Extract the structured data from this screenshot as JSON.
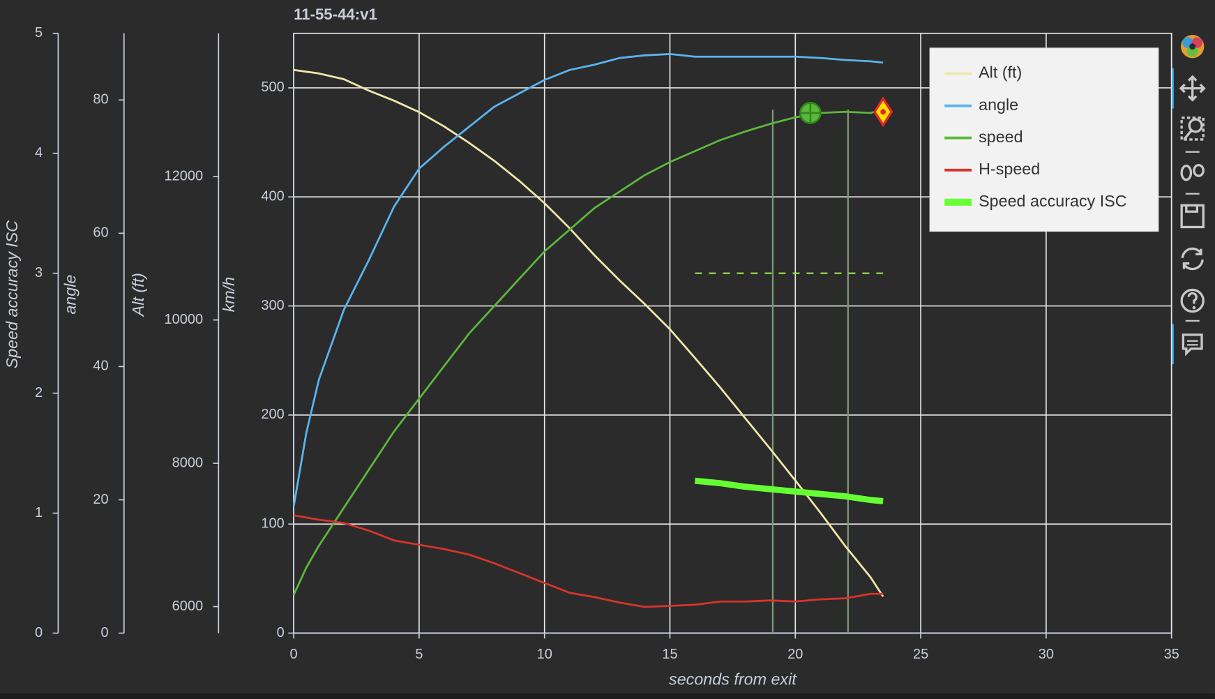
{
  "chart_data": {
    "type": "line",
    "title": "11-55-44:v1",
    "xlabel": "seconds from exit",
    "ylabel": "km/h",
    "xlim": [
      0,
      35
    ],
    "xticks": [
      0,
      5,
      10,
      15,
      20,
      25,
      30,
      35
    ],
    "ylim": [
      0,
      550
    ],
    "yticks": [
      0,
      100,
      200,
      300,
      400,
      500
    ],
    "y2label": "Alt (ft)",
    "y2lim": [
      5630,
      14000
    ],
    "y2ticks": [
      6000,
      8000,
      10000,
      12000
    ],
    "y3label": "angle",
    "y3lim": [
      0,
      90
    ],
    "y3ticks": [
      0,
      20,
      40,
      60,
      80
    ],
    "y4label": "Speed accuracy ISC",
    "y4lim": [
      0,
      5
    ],
    "y4ticks": [
      0,
      1,
      2,
      3,
      4,
      5
    ],
    "grid": true,
    "legend": "top-right",
    "series": [
      {
        "name": "Alt (ft)",
        "color": "#eee8aa",
        "axis": "y2",
        "width": 2.5,
        "x": [
          0,
          1,
          2,
          3,
          4,
          5,
          6,
          7,
          8,
          9,
          10,
          11,
          12,
          13,
          14,
          15,
          16,
          17,
          18,
          19,
          20,
          21,
          22,
          23,
          23.5
        ],
        "values": [
          13490,
          13440,
          13360,
          13200,
          13060,
          12900,
          12700,
          12470,
          12220,
          11940,
          11630,
          11280,
          10900,
          10550,
          10220,
          9870,
          9470,
          9060,
          8630,
          8200,
          7760,
          7310,
          6840,
          6410,
          6140
        ]
      },
      {
        "name": "angle",
        "color": "#5ab4ee",
        "axis": "y3",
        "width": 2.5,
        "x": [
          0,
          0.5,
          1,
          2,
          3,
          4,
          5,
          6,
          7,
          8,
          9,
          10,
          11,
          12,
          13,
          14,
          15,
          16,
          17,
          18,
          19,
          20,
          21,
          22,
          23,
          23.5
        ],
        "values": [
          19,
          30,
          38,
          48.5,
          56,
          64,
          69.7,
          73,
          76,
          79,
          81,
          83,
          84.5,
          85.3,
          86.3,
          86.7,
          86.9,
          86.5,
          86.5,
          86.5,
          86.5,
          86.5,
          86.3,
          86,
          85.8,
          85.6
        ]
      },
      {
        "name": "speed",
        "color": "#5cb83c",
        "axis": "y",
        "width": 2.5,
        "x": [
          0,
          0.5,
          1,
          2,
          3,
          4,
          5,
          6,
          7,
          8,
          9,
          10,
          11,
          12,
          13,
          14,
          15,
          16,
          17,
          18,
          19,
          20,
          21,
          22,
          23,
          23.5
        ],
        "values": [
          35,
          60,
          80,
          115,
          150,
          185,
          215,
          245,
          275,
          300,
          325,
          350,
          370,
          390,
          405,
          420,
          432,
          442,
          452,
          460,
          467,
          473,
          477,
          478,
          477,
          480
        ]
      },
      {
        "name": "H-speed",
        "color": "#d9342b",
        "axis": "y",
        "width": 2.5,
        "x": [
          0,
          1,
          2,
          3,
          4,
          5,
          6,
          7,
          8,
          9,
          10,
          11,
          12,
          13,
          14,
          15,
          16,
          17,
          18,
          19,
          20,
          21,
          22,
          23,
          23.5
        ],
        "values": [
          108,
          104,
          101,
          94,
          85,
          81,
          77,
          72,
          64,
          55,
          46,
          37,
          33,
          28,
          24,
          25,
          26,
          29,
          29,
          30,
          29,
          31,
          32,
          36,
          36
        ]
      },
      {
        "name": "Speed accuracy ISC",
        "color": "#66ff33",
        "axis": "y4",
        "width": 8,
        "x": [
          16,
          17,
          18,
          19,
          20,
          21,
          22,
          23,
          23.5
        ],
        "values": [
          1.27,
          1.25,
          1.22,
          1.2,
          1.18,
          1.16,
          1.14,
          1.11,
          1.1
        ]
      }
    ],
    "reference_line": {
      "x": [
        16,
        23.5
      ],
      "y": 330,
      "color": "#9be84a"
    },
    "vlines": {
      "x": [
        19.1,
        22.1
      ],
      "top": 480,
      "color": "#7f9a78"
    },
    "markers": [
      {
        "shape": "circle_cross",
        "x": 20.6,
        "y": 477,
        "fill": "#5cb83c",
        "stroke": "#2f8a1c"
      },
      {
        "shape": "diamond_dot",
        "x": 23.5,
        "y": 478,
        "fill": "#ffe000",
        "stroke": "#e8232b"
      }
    ]
  }
}
